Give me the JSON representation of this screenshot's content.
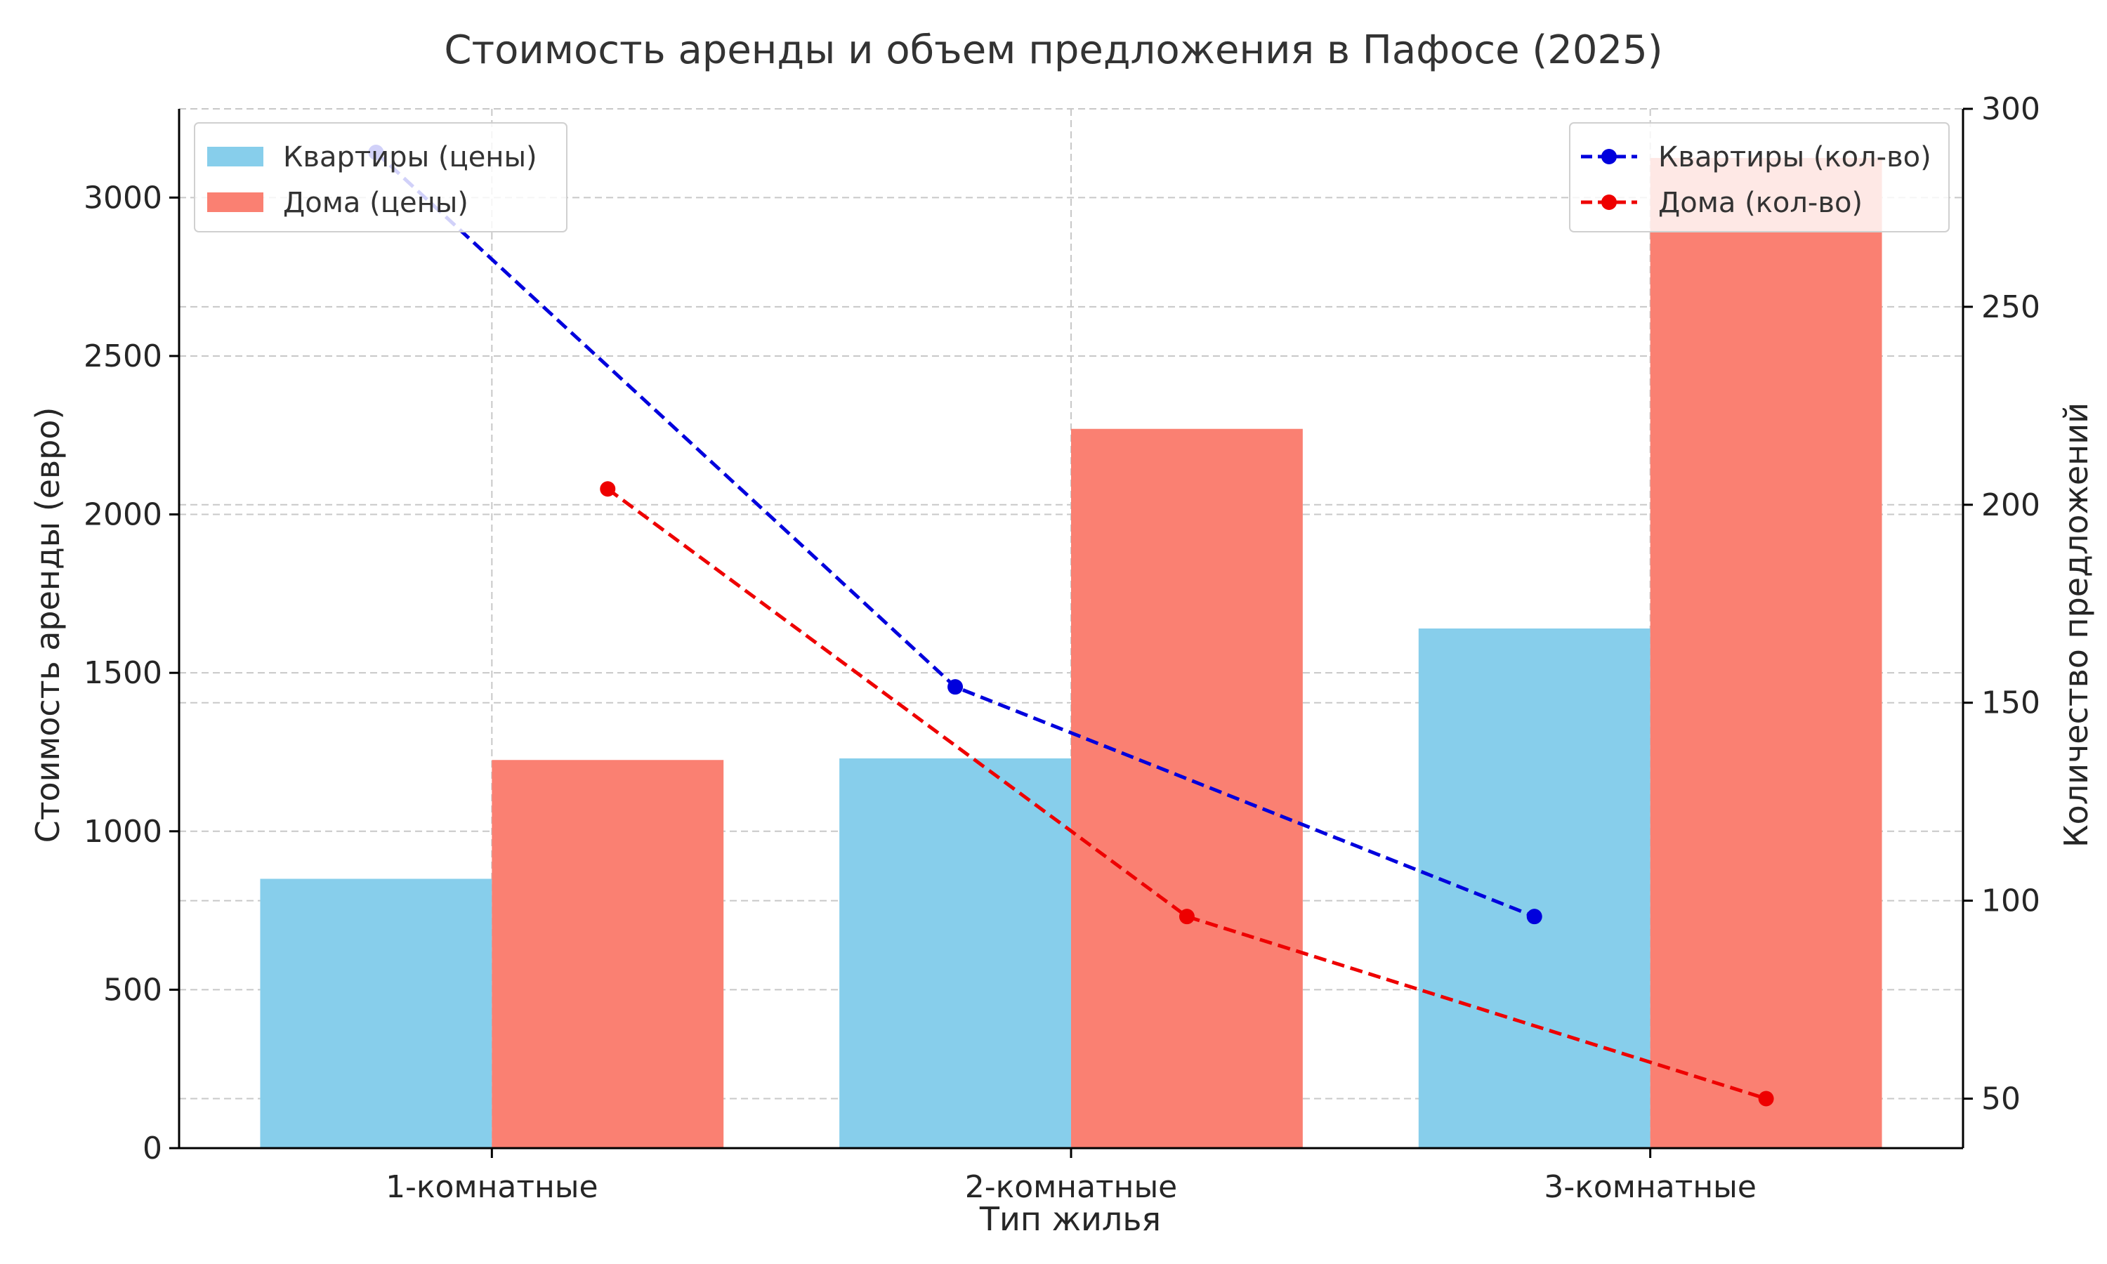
{
  "chart_data": {
    "type": "bar",
    "title": "Стоимость аренды и объем предложения в Пафосе (2025)",
    "xlabel": "Тип жилья",
    "ylabel": "Стоимость аренды (евро)",
    "y2label": "Количество предложений",
    "categories": [
      "1-комнатные",
      "2-комнатные",
      "3-комнатные"
    ],
    "ylim": [
      0,
      3280
    ],
    "y2lim": [
      37.5,
      300
    ],
    "yticks": [
      0,
      500,
      1000,
      1500,
      2000,
      2500,
      3000
    ],
    "y2ticks": [
      50,
      100,
      150,
      200,
      250,
      300
    ],
    "grid": true,
    "series": [
      {
        "name": "Квартиры (цены)",
        "kind": "bar",
        "axis": "left",
        "color": "#87CEEB",
        "values": [
          850,
          1230,
          1640
        ]
      },
      {
        "name": "Дома (цены)",
        "kind": "bar",
        "axis": "left",
        "color": "#FA8072",
        "values": [
          1225,
          2270,
          3125
        ]
      },
      {
        "name": "Квартиры (кол-во)",
        "kind": "line",
        "axis": "right",
        "color": "#0000DD",
        "style": "dashed",
        "marker": "circle",
        "values": [
          289,
          154,
          96
        ]
      },
      {
        "name": "Дома (кол-во)",
        "kind": "line",
        "axis": "right",
        "color": "#EE0000",
        "style": "dashed",
        "marker": "circle",
        "values": [
          204,
          96,
          50
        ]
      }
    ],
    "legends": [
      {
        "placement": "top-left",
        "entries": [
          "Квартиры (цены)",
          "Дома (цены)"
        ]
      },
      {
        "placement": "top-right",
        "entries": [
          "Квартиры (кол-во)",
          "Дома (кол-во)"
        ]
      }
    ]
  }
}
